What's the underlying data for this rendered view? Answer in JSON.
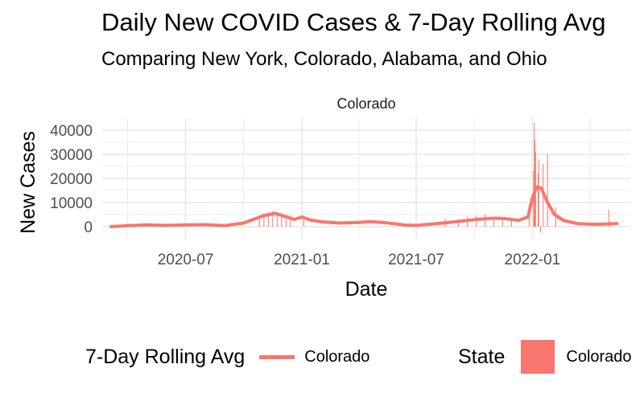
{
  "title": "Daily New COVID Cases & 7-Day Rolling Avg",
  "subtitle": "Comparing New York, Colorado, Alabama, and Ohio",
  "colors": {
    "series": "#F8766D",
    "grid": "#EBEBEB"
  },
  "legend": {
    "line_title": "7-Day Rolling Avg",
    "line_label": "Colorado",
    "fill_title": "State",
    "fill_label": "Colorado"
  },
  "chart_data": {
    "type": "bar",
    "facet_label": "Colorado",
    "xlabel": "Date",
    "ylabel": "New Cases",
    "xlim": [
      "2020-02-20",
      "2022-06-05"
    ],
    "ylim": [
      -5000,
      45000
    ],
    "x_ticks": [
      "2020-07-01",
      "2021-01-01",
      "2021-07-01",
      "2022-01-01"
    ],
    "x_tick_labels": [
      "2020-07",
      "2021-01",
      "2021-07",
      "2022-01"
    ],
    "y_ticks": [
      0,
      10000,
      20000,
      30000,
      40000
    ],
    "y_tick_labels": [
      "0",
      "10000",
      "20000",
      "30000",
      "40000"
    ],
    "grid": true,
    "legend_position": "bottom",
    "series": [
      {
        "name": "Colorado",
        "kind": "rolling_avg_line",
        "x": [
          "2020-03-05",
          "2020-04-01",
          "2020-05-01",
          "2020-06-01",
          "2020-07-01",
          "2020-08-01",
          "2020-09-01",
          "2020-10-01",
          "2020-11-01",
          "2020-11-20",
          "2020-12-05",
          "2020-12-20",
          "2021-01-01",
          "2021-01-15",
          "2021-02-01",
          "2021-03-01",
          "2021-04-01",
          "2021-04-20",
          "2021-05-15",
          "2021-06-15",
          "2021-07-01",
          "2021-08-01",
          "2021-09-01",
          "2021-10-01",
          "2021-11-01",
          "2021-11-20",
          "2021-12-10",
          "2021-12-25",
          "2022-01-01",
          "2022-01-08",
          "2022-01-15",
          "2022-01-25",
          "2022-02-05",
          "2022-02-20",
          "2022-03-15",
          "2022-04-15",
          "2022-05-15"
        ],
        "values": [
          0,
          400,
          700,
          500,
          700,
          800,
          400,
          1500,
          4500,
          5500,
          4200,
          3000,
          4000,
          2700,
          2000,
          1500,
          1700,
          2100,
          1600,
          600,
          500,
          1200,
          2000,
          2900,
          3500,
          3300,
          2600,
          4000,
          12000,
          16500,
          16000,
          10000,
          5000,
          2500,
          1200,
          900,
          1300
        ]
      },
      {
        "name": "Colorado",
        "kind": "daily_bars",
        "x": [
          "2020-10-26",
          "2020-11-02",
          "2020-11-09",
          "2020-11-16",
          "2020-11-23",
          "2020-11-30",
          "2020-12-07",
          "2020-12-14",
          "2021-01-04",
          "2021-08-16",
          "2021-09-06",
          "2021-09-20",
          "2021-10-04",
          "2021-10-18",
          "2021-11-01",
          "2021-11-15",
          "2021-11-29",
          "2021-12-27",
          "2022-01-03",
          "2022-01-04",
          "2022-01-05",
          "2022-01-06",
          "2022-01-10",
          "2022-01-11",
          "2022-01-14",
          "2022-01-18",
          "2022-01-25",
          "2022-02-07",
          "2022-05-02"
        ],
        "values": [
          4000,
          5500,
          6000,
          6500,
          5000,
          5800,
          5200,
          4500,
          3800,
          3200,
          3000,
          4200,
          4500,
          5000,
          4000,
          3500,
          3000,
          9000,
          23000,
          43000,
          36000,
          31000,
          22000,
          28000,
          -2500,
          26000,
          30000,
          8000,
          7000
        ]
      }
    ]
  }
}
